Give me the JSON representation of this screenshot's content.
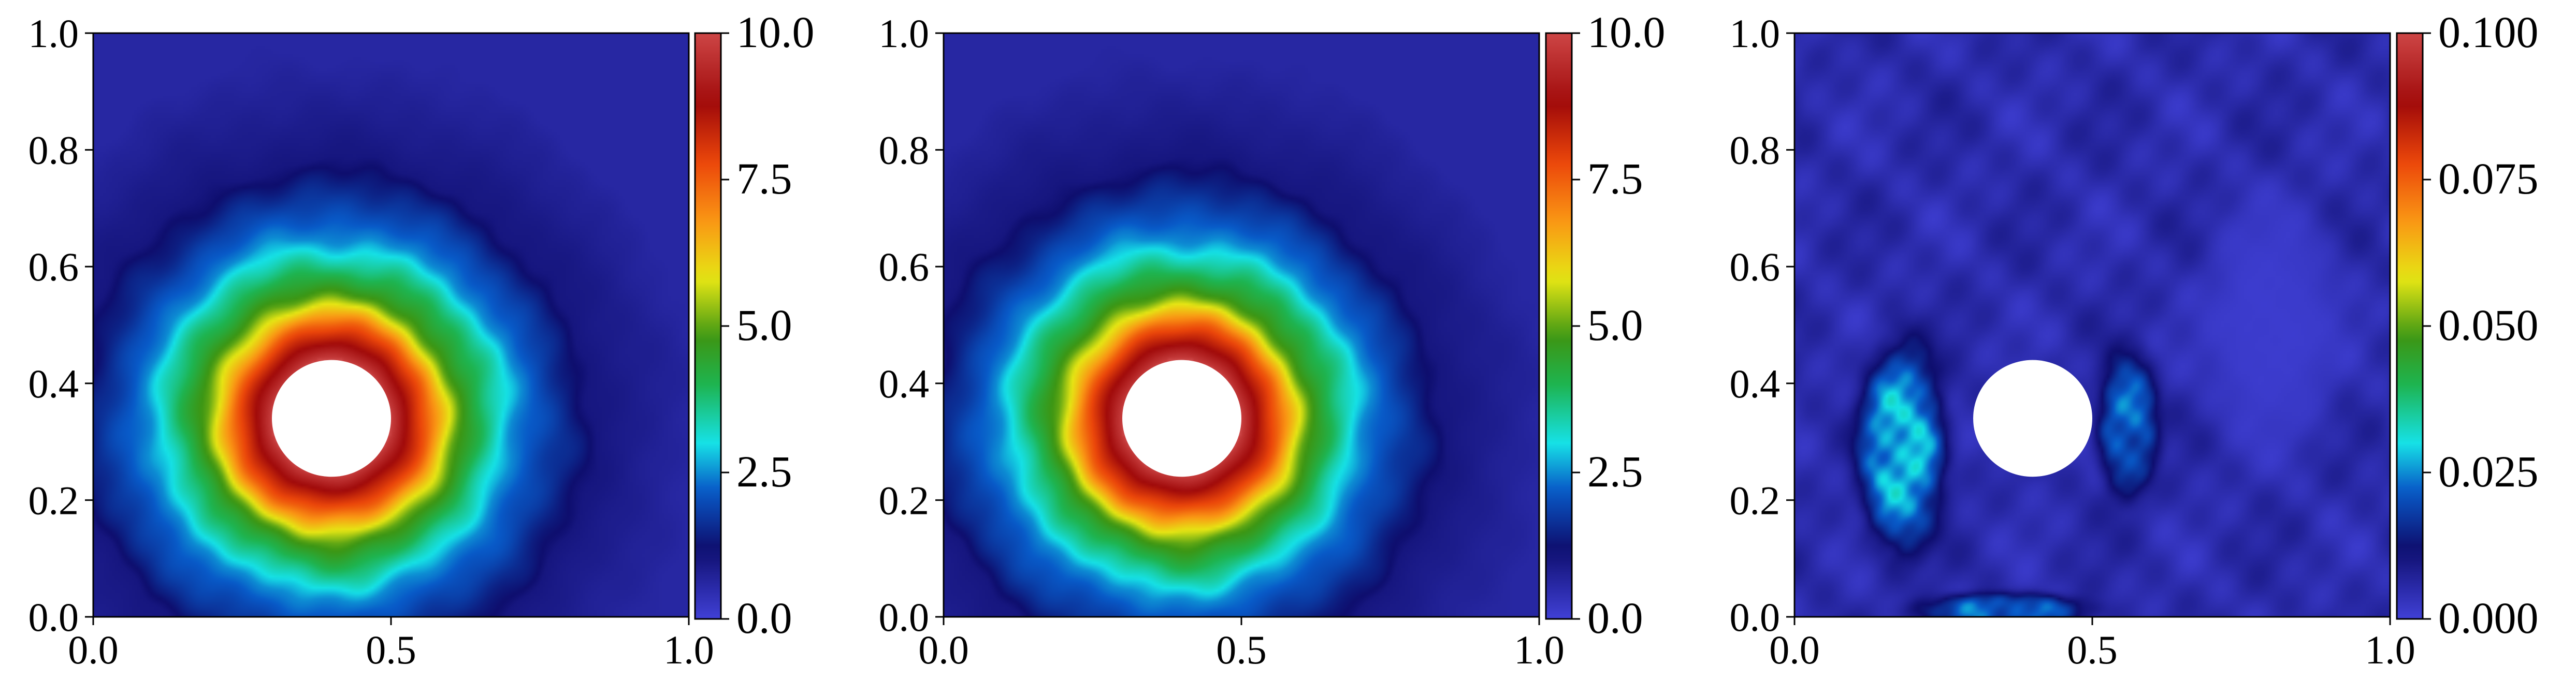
{
  "chart_data": [
    {
      "type": "heatmap",
      "title": "",
      "xlabel": "",
      "ylabel": "",
      "xlim": [
        0.0,
        1.0
      ],
      "ylim": [
        0.0,
        1.0
      ],
      "x_ticks": [
        "0.0",
        "0.5",
        "1.0"
      ],
      "y_ticks": [
        "0.0",
        "0.2",
        "0.4",
        "0.6",
        "0.8",
        "1.0"
      ],
      "colormap": "turbo-like (blue-cyan-green-yellow-orange-red)",
      "colorbar": {
        "range": [
          0.0,
          10.0
        ],
        "ticks": [
          "0.0",
          "2.5",
          "5.0",
          "7.5",
          "10.0"
        ]
      },
      "hole": {
        "center": [
          0.4,
          0.34
        ],
        "radius": 0.1
      },
      "field": {
        "kind": "rings",
        "background_value": 0.6,
        "peak_value": 10.0,
        "value_at_hole_edge": 9.8,
        "contours": [
          {
            "value": 7.5,
            "radius": 0.16
          },
          {
            "value": 5.0,
            "radius": 0.21
          },
          {
            "value": 2.5,
            "radius": 0.31
          },
          {
            "value": 1.0,
            "radius": 0.44
          }
        ]
      },
      "grid": false,
      "legend": "none"
    },
    {
      "type": "heatmap",
      "title": "",
      "xlabel": "",
      "ylabel": "",
      "xlim": [
        0.0,
        1.0
      ],
      "ylim": [
        0.0,
        1.0
      ],
      "x_ticks": [
        "0.0",
        "0.5",
        "1.0"
      ],
      "y_ticks": [
        "0.0",
        "0.2",
        "0.4",
        "0.6",
        "0.8",
        "1.0"
      ],
      "colormap": "turbo-like (blue-cyan-green-yellow-orange-red)",
      "colorbar": {
        "range": [
          0.0,
          10.0
        ],
        "ticks": [
          "0.0",
          "2.5",
          "5.0",
          "7.5",
          "10.0"
        ]
      },
      "hole": {
        "center": [
          0.4,
          0.34
        ],
        "radius": 0.1
      },
      "field": {
        "kind": "rings",
        "background_value": 0.6,
        "peak_value": 10.0,
        "value_at_hole_edge": 9.8,
        "contours": [
          {
            "value": 7.5,
            "radius": 0.16
          },
          {
            "value": 5.0,
            "radius": 0.21
          },
          {
            "value": 2.5,
            "radius": 0.31
          },
          {
            "value": 1.0,
            "radius": 0.44
          }
        ]
      },
      "grid": false,
      "legend": "none"
    },
    {
      "type": "heatmap",
      "title": "",
      "xlabel": "",
      "ylabel": "",
      "xlim": [
        0.0,
        1.0
      ],
      "ylim": [
        0.0,
        1.0
      ],
      "x_ticks": [
        "0.0",
        "0.5",
        "1.0"
      ],
      "y_ticks": [
        "0.0",
        "0.2",
        "0.4",
        "0.6",
        "0.8",
        "1.0"
      ],
      "colormap": "turbo-like (blue-cyan-green-yellow-orange-red)",
      "colorbar": {
        "range": [
          0.0,
          0.1
        ],
        "ticks": [
          "0.000",
          "0.025",
          "0.050",
          "0.075",
          "0.100"
        ]
      },
      "hole": {
        "center": [
          0.4,
          0.34
        ],
        "radius": 0.1
      },
      "field": {
        "kind": "error",
        "background_value": 0.005,
        "blobs": [
          {
            "x": 0.18,
            "y": 0.29,
            "rx": 0.07,
            "ry": 0.17,
            "value": 0.028
          },
          {
            "x": 0.56,
            "y": 0.33,
            "rx": 0.05,
            "ry": 0.12,
            "value": 0.022
          },
          {
            "x": 0.35,
            "y": 0.01,
            "rx": 0.14,
            "ry": 0.03,
            "value": 0.022
          },
          {
            "x": 0.8,
            "y": 0.5,
            "rx": 0.12,
            "ry": 0.22,
            "value": 0.001
          }
        ]
      },
      "grid": false,
      "legend": "none"
    }
  ]
}
